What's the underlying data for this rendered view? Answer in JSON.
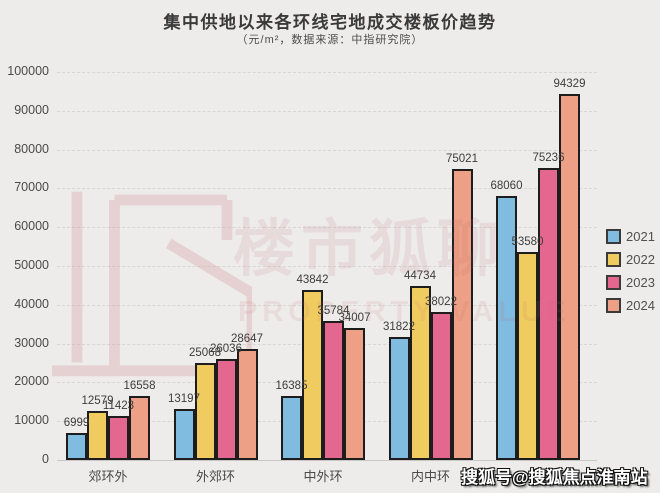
{
  "chart_data": {
    "type": "bar",
    "title": "集中供地以来各环线宅地成交楼板价趋势",
    "subtitle": "（元/m²，数据来源：中指研究院）",
    "categories": [
      "郊环外",
      "外郊环",
      "中外环",
      "内中环",
      ""
    ],
    "series": [
      {
        "name": "2021",
        "color": "#7fbcdf",
        "values": [
          6999,
          13197,
          16385,
          31822,
          68060
        ]
      },
      {
        "name": "2022",
        "color": "#f0cc60",
        "values": [
          12579,
          25068,
          43842,
          44734,
          53580
        ]
      },
      {
        "name": "2023",
        "color": "#e4678f",
        "values": [
          11423,
          26036,
          35784,
          38022,
          75236
        ]
      },
      {
        "name": "2024",
        "color": "#eda086",
        "values": [
          16558,
          28647,
          34007,
          75021,
          94329
        ]
      }
    ],
    "ylim": [
      0,
      100000
    ],
    "ytick_step": 10000,
    "ytick_labels": [
      "0",
      "10000",
      "20000",
      "30000",
      "40000",
      "50000",
      "60000",
      "70000",
      "80000",
      "90000",
      "100000"
    ],
    "grid": "horizontal-dashed",
    "legend_position": "right",
    "bar_border_color": "#1d1d1d"
  },
  "watermarks": {
    "center_text": "楼市狐聊",
    "center_subtext": "PROPERTY VALUE",
    "bottom_right": "搜狐号@搜狐焦点淮南站"
  }
}
